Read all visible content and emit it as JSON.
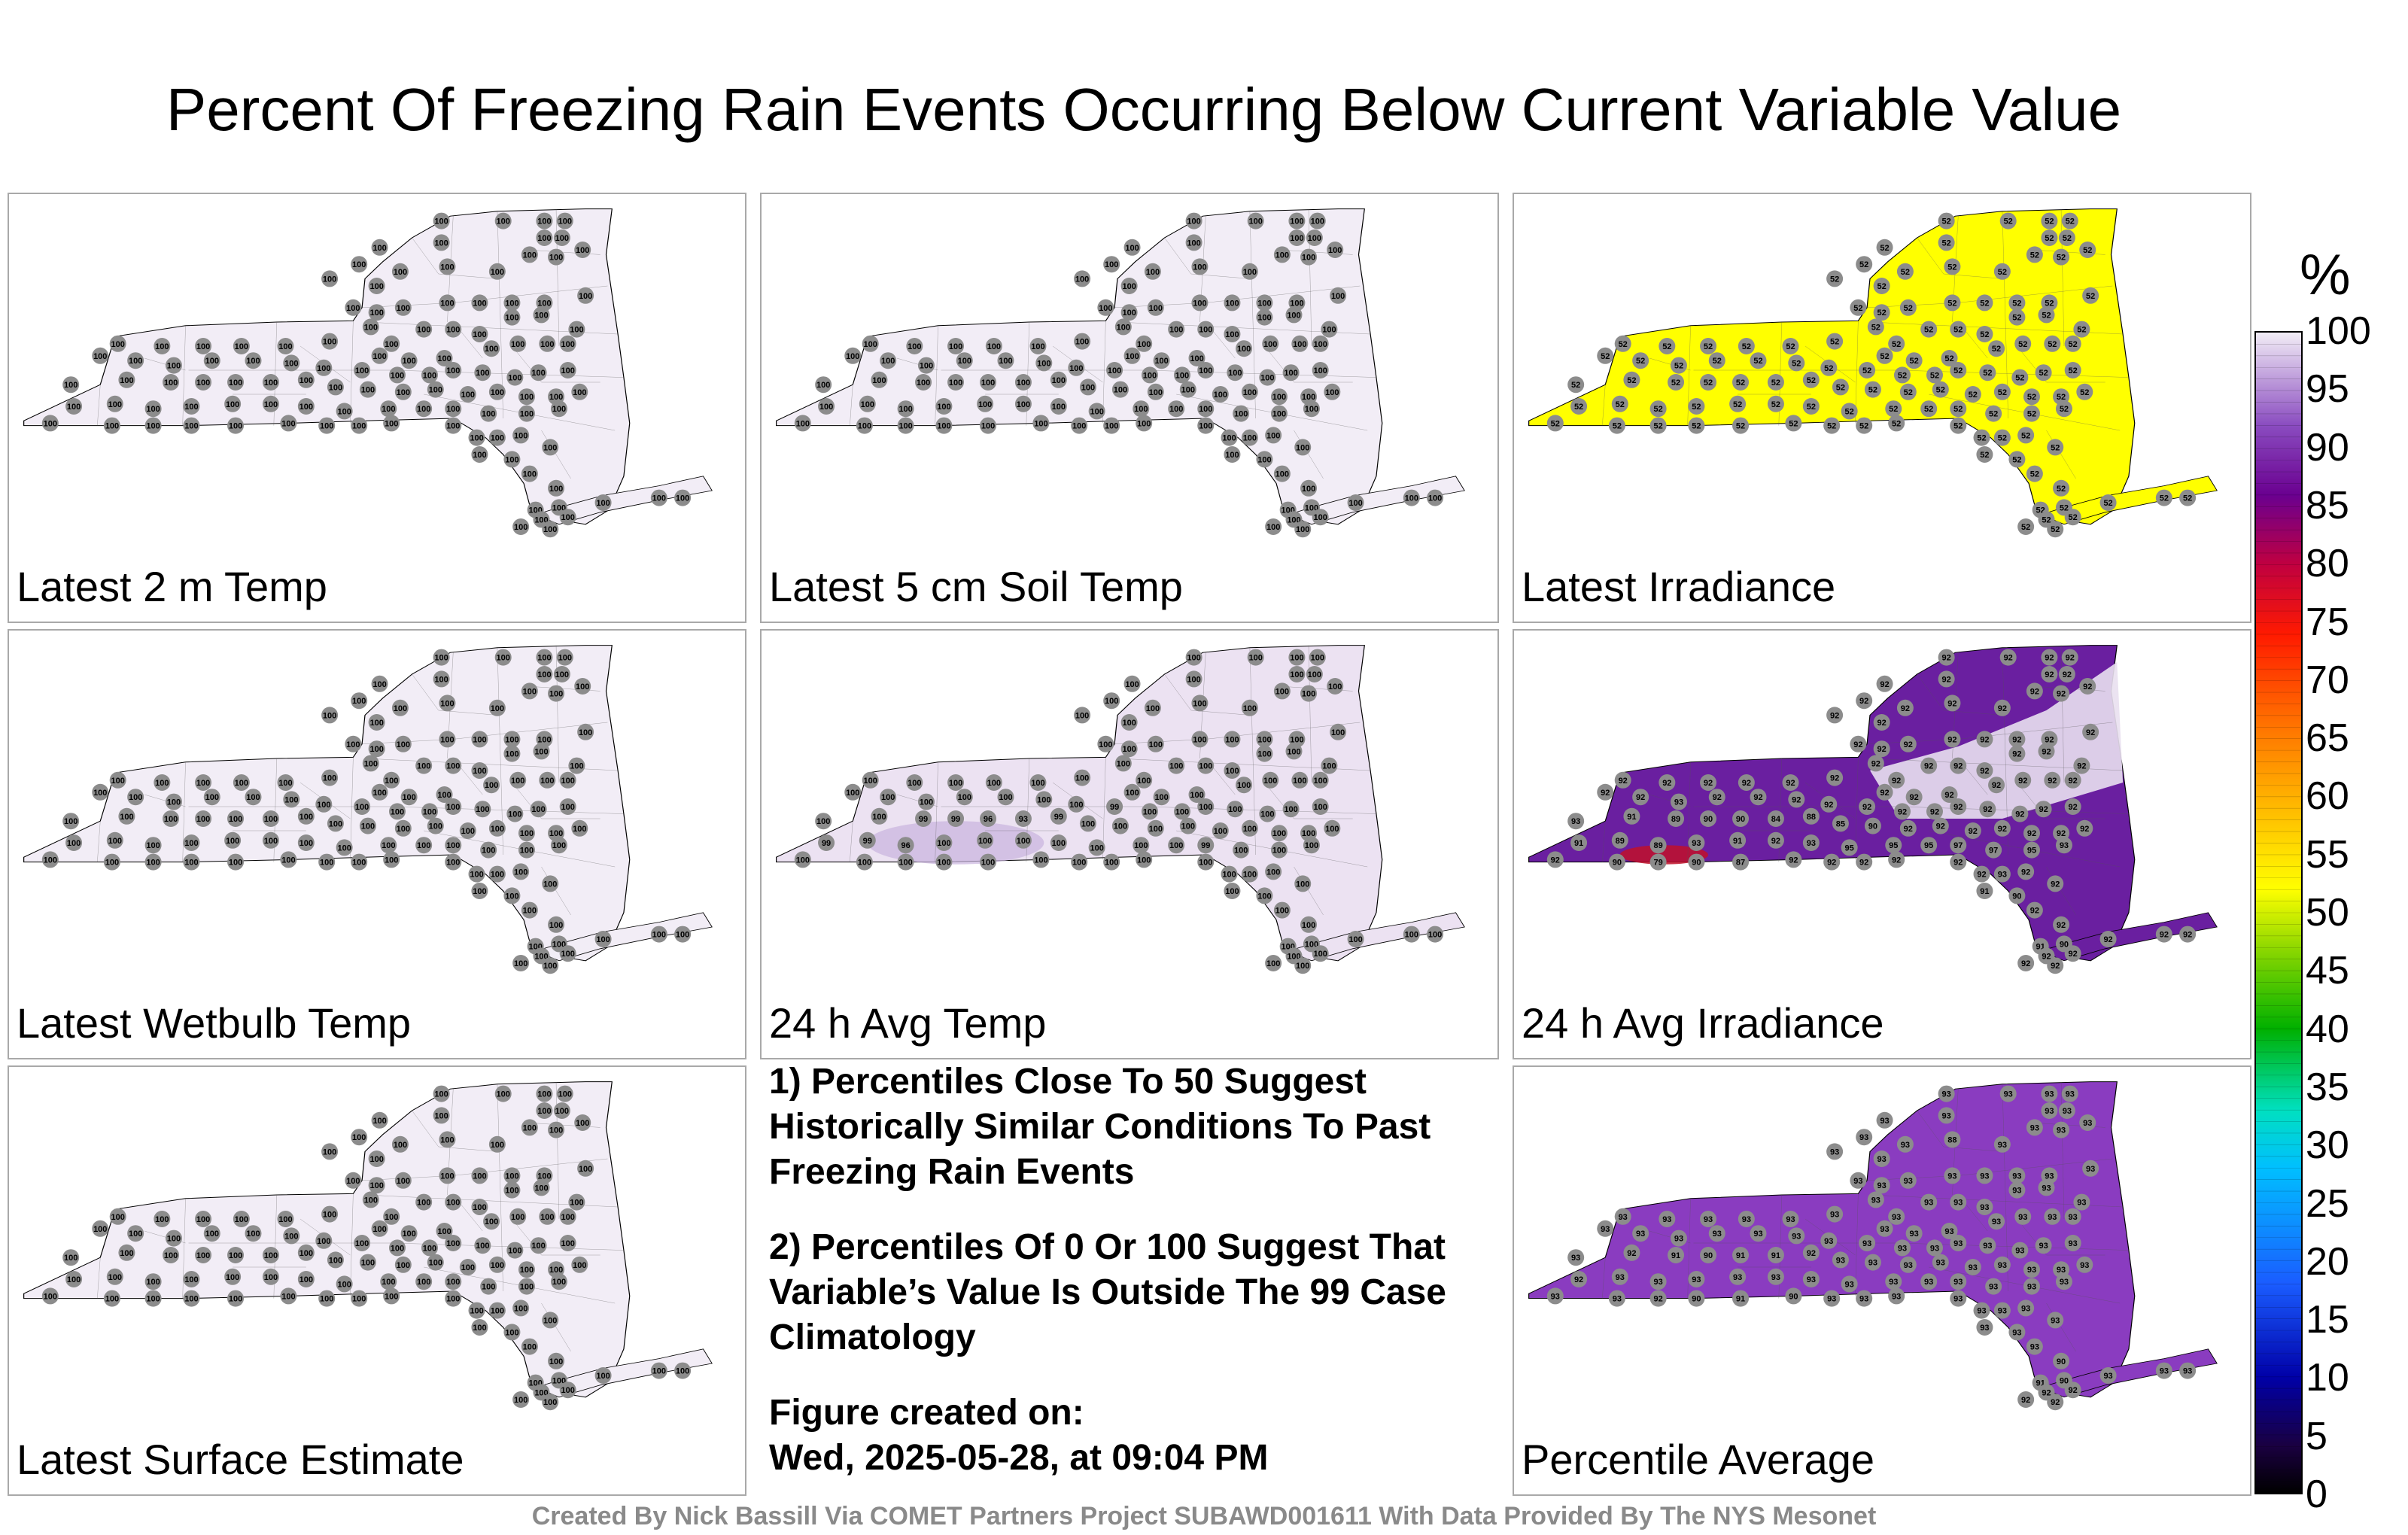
{
  "title": "Percent Of Freezing Rain Events Occurring Below Current Variable Value",
  "colorbar": {
    "unit": "%",
    "ticks": [
      "100",
      "95",
      "90",
      "85",
      "80",
      "75",
      "70",
      "65",
      "60",
      "55",
      "50",
      "45",
      "40",
      "35",
      "30",
      "25",
      "20",
      "15",
      "10",
      "5",
      "0"
    ]
  },
  "panels": [
    {
      "label": "Latest 2 m Temp",
      "fill": "#f2edf6",
      "station_value": "100"
    },
    {
      "label": "Latest 5 cm Soil Temp",
      "fill": "#f2edf6",
      "station_value": "100"
    },
    {
      "label": "Latest Irradiance",
      "fill": "#ffff00",
      "station_value": "52"
    },
    {
      "label": "Latest Wetbulb Temp",
      "fill": "#f2edf6",
      "station_value": "100"
    },
    {
      "label": "24 h Avg Temp",
      "fill": "#ece2f2",
      "station_value": "100"
    },
    {
      "label": "24 h Avg Irradiance",
      "fill": "#6a1fa0",
      "station_value": "92"
    },
    {
      "label": "Latest Surface Estimate",
      "fill": "#f2edf6",
      "station_value": "100"
    },
    {
      "label": "Percentile Average",
      "fill": "#8a3cc0",
      "station_value": "93"
    }
  ],
  "notes": {
    "line1": "1) Percentiles Close To 50 Suggest Historically Similar Conditions To Past Freezing Rain Events",
    "line2": "2) Percentiles Of 0 Or 100 Suggest That Variable’s Value Is Outside The 99 Case Climatology",
    "created_label": "Figure created on:",
    "created_date": "Wed, 2025-05-28, at 09:04 PM"
  },
  "credit": "Created By Nick Bassill Via COMET Partners Project SUBAWD001611 With Data Provided By The NYS Mesonet"
}
